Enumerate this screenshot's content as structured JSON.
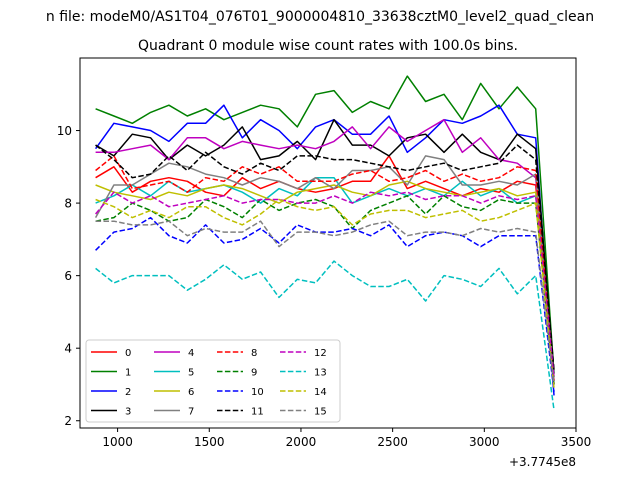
{
  "chart_data": {
    "type": "line",
    "suptitle": "n file: modeM0/AS1T04_076T01_9000004810_33638cztM0_level2_quad_clean",
    "title": "Quadrant 0 module wise count rates with 100.0s bins.",
    "xlabel": "",
    "ylabel": "",
    "x_offset_label": "+3.7745e8",
    "xlim": [
      795,
      3500
    ],
    "ylim": [
      1.8,
      12.0
    ],
    "xticks": [
      1000,
      1500,
      2000,
      2500,
      3000,
      3500
    ],
    "yticks": [
      2,
      4,
      6,
      8,
      10
    ],
    "x": [
      880,
      980,
      1080,
      1180,
      1280,
      1380,
      1480,
      1580,
      1680,
      1780,
      1880,
      1980,
      2080,
      2180,
      2280,
      2380,
      2480,
      2580,
      2680,
      2780,
      2880,
      2980,
      3080,
      3180,
      3280,
      3380
    ],
    "legend_position": "lower-left",
    "series": [
      {
        "name": "0",
        "color": "#ff0000",
        "style": "solid",
        "values": [
          8.7,
          9.0,
          8.3,
          8.6,
          8.7,
          8.6,
          8.3,
          8.2,
          8.7,
          8.4,
          8.6,
          8.4,
          8.3,
          8.4,
          8.6,
          8.6,
          9.3,
          8.4,
          8.6,
          8.4,
          8.2,
          8.4,
          8.3,
          8.6,
          8.5,
          3.0
        ]
      },
      {
        "name": "1",
        "color": "#008000",
        "style": "solid",
        "values": [
          10.6,
          10.4,
          10.2,
          10.5,
          10.7,
          10.4,
          10.6,
          10.3,
          10.5,
          10.7,
          10.6,
          10.1,
          11.0,
          11.1,
          10.5,
          10.8,
          10.6,
          11.5,
          10.8,
          11.0,
          10.3,
          11.3,
          10.6,
          11.2,
          10.6,
          3.3
        ]
      },
      {
        "name": "2",
        "color": "#0000ff",
        "style": "solid",
        "values": [
          9.5,
          10.2,
          10.1,
          10.0,
          9.7,
          10.2,
          10.2,
          10.7,
          9.8,
          10.3,
          10.0,
          9.5,
          10.1,
          10.3,
          9.9,
          9.9,
          10.4,
          9.4,
          9.8,
          10.3,
          10.2,
          10.4,
          10.7,
          9.9,
          9.8,
          2.7
        ]
      },
      {
        "name": "3",
        "color": "#000000",
        "style": "solid",
        "values": [
          9.6,
          9.3,
          9.9,
          9.8,
          9.2,
          9.6,
          9.3,
          9.6,
          10.1,
          9.2,
          9.3,
          9.7,
          9.2,
          10.3,
          9.6,
          9.6,
          9.3,
          9.8,
          9.9,
          9.4,
          9.9,
          9.4,
          9.2,
          9.9,
          9.5,
          3.3
        ]
      },
      {
        "name": "4",
        "color": "#bf00bf",
        "style": "solid",
        "values": [
          9.4,
          9.4,
          9.5,
          9.6,
          9.2,
          9.8,
          9.8,
          9.5,
          9.7,
          9.6,
          9.5,
          9.6,
          9.5,
          9.7,
          10.1,
          9.5,
          10.1,
          9.7,
          10.0,
          10.3,
          9.4,
          9.8,
          9.2,
          9.1,
          8.7,
          3.1
        ]
      },
      {
        "name": "5",
        "color": "#00bfbf",
        "style": "solid",
        "values": [
          8.0,
          8.2,
          8.5,
          8.2,
          8.6,
          8.3,
          8.4,
          8.5,
          8.3,
          8.0,
          8.4,
          8.2,
          8.7,
          8.7,
          8.0,
          8.2,
          8.4,
          8.2,
          8.4,
          8.2,
          8.6,
          8.2,
          8.4,
          8.0,
          8.2,
          3.2
        ]
      },
      {
        "name": "6",
        "color": "#bfbf00",
        "style": "solid",
        "values": [
          8.5,
          8.3,
          8.2,
          8.1,
          8.3,
          8.2,
          8.4,
          8.5,
          8.4,
          8.2,
          8.0,
          8.3,
          8.4,
          8.5,
          8.3,
          8.2,
          8.5,
          8.6,
          8.4,
          8.3,
          8.2,
          8.3,
          8.4,
          8.2,
          8.3,
          3.0
        ]
      },
      {
        "name": "7",
        "color": "#808080",
        "style": "solid",
        "values": [
          7.6,
          8.5,
          8.5,
          8.8,
          9.1,
          9.0,
          8.8,
          8.7,
          8.5,
          8.7,
          8.6,
          8.4,
          8.7,
          8.4,
          8.9,
          8.9,
          9.0,
          8.5,
          9.3,
          9.2,
          8.5,
          8.5,
          8.6,
          8.5,
          8.8,
          3.2
        ]
      },
      {
        "name": "8",
        "color": "#ff0000",
        "style": "dashed",
        "values": [
          8.9,
          9.3,
          8.4,
          8.5,
          8.6,
          8.3,
          8.7,
          8.6,
          9.0,
          8.8,
          9.0,
          8.6,
          8.6,
          8.6,
          8.8,
          8.9,
          8.6,
          8.7,
          8.9,
          8.6,
          8.8,
          8.6,
          8.7,
          9.0,
          8.9,
          3.1
        ]
      },
      {
        "name": "9",
        "color": "#008000",
        "style": "dashed",
        "values": [
          7.5,
          7.6,
          8.0,
          7.8,
          7.5,
          7.6,
          8.1,
          7.9,
          7.6,
          8.1,
          7.8,
          8.0,
          8.1,
          7.9,
          7.3,
          7.8,
          8.0,
          8.2,
          7.7,
          8.2,
          7.9,
          7.8,
          8.1,
          8.0,
          8.0,
          3.0
        ]
      },
      {
        "name": "10",
        "color": "#0000ff",
        "style": "dashed",
        "values": [
          6.7,
          7.2,
          7.3,
          7.6,
          7.1,
          6.9,
          7.4,
          6.9,
          7.0,
          7.3,
          6.9,
          7.4,
          7.2,
          7.2,
          7.3,
          7.1,
          7.4,
          6.8,
          7.1,
          7.2,
          7.1,
          6.8,
          7.1,
          7.1,
          7.1,
          2.8
        ]
      },
      {
        "name": "11",
        "color": "#000000",
        "style": "dashed",
        "values": [
          9.6,
          9.2,
          8.7,
          8.8,
          9.3,
          8.9,
          9.4,
          9.0,
          8.8,
          9.1,
          8.9,
          9.3,
          9.3,
          9.2,
          9.2,
          9.1,
          9.0,
          8.9,
          9.0,
          9.1,
          8.9,
          9.0,
          9.1,
          9.6,
          9.2,
          3.4
        ]
      },
      {
        "name": "12",
        "color": "#bf00bf",
        "style": "dashed",
        "values": [
          7.7,
          8.3,
          8.0,
          8.2,
          7.9,
          8.0,
          8.1,
          8.2,
          8.0,
          8.1,
          8.1,
          8.0,
          8.0,
          8.2,
          8.0,
          8.3,
          8.2,
          8.3,
          8.1,
          8.2,
          8.2,
          8.0,
          8.2,
          8.1,
          8.2,
          3.2
        ]
      },
      {
        "name": "13",
        "color": "#00bfbf",
        "style": "dashed",
        "values": [
          6.2,
          5.8,
          6.0,
          6.0,
          6.0,
          5.6,
          5.9,
          6.3,
          5.9,
          6.1,
          5.4,
          5.9,
          5.8,
          6.4,
          6.0,
          5.7,
          5.7,
          5.9,
          5.3,
          6.0,
          5.9,
          5.7,
          6.2,
          5.5,
          6.0,
          2.3
        ]
      },
      {
        "name": "14",
        "color": "#bfbf00",
        "style": "dashed",
        "values": [
          8.1,
          7.9,
          7.6,
          7.8,
          7.6,
          7.9,
          7.9,
          7.6,
          7.4,
          7.7,
          8.1,
          7.9,
          7.8,
          7.9,
          7.4,
          7.7,
          7.8,
          7.8,
          7.6,
          7.7,
          7.8,
          7.5,
          7.6,
          7.8,
          8.0,
          2.9
        ]
      },
      {
        "name": "15",
        "color": "#808080",
        "style": "dashed",
        "values": [
          7.5,
          7.5,
          7.4,
          7.4,
          7.5,
          7.1,
          7.3,
          7.2,
          7.2,
          7.5,
          6.8,
          7.2,
          7.2,
          7.1,
          7.2,
          7.4,
          7.5,
          7.1,
          7.2,
          7.2,
          7.1,
          7.3,
          7.2,
          7.3,
          7.2,
          3.0
        ]
      }
    ]
  }
}
